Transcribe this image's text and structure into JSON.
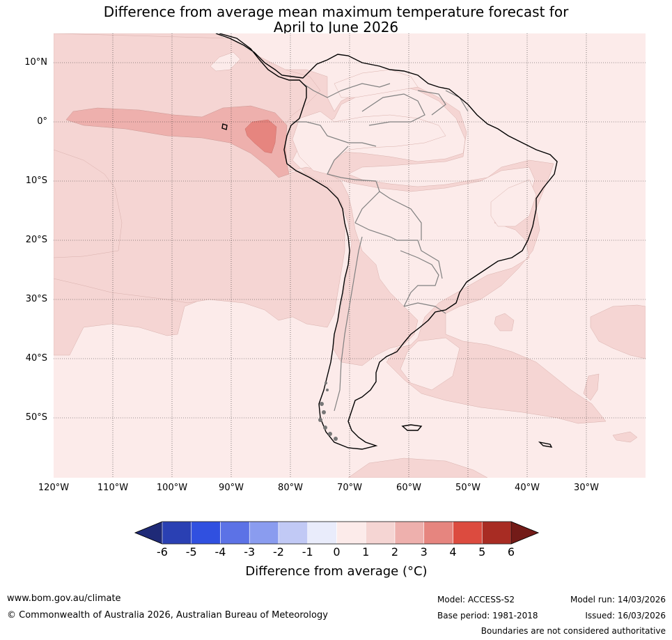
{
  "title": {
    "line1": "Difference from average mean maximum temperature forecast for",
    "line2": "April to June 2026"
  },
  "map": {
    "lat_labels": [
      "10°N",
      "0°",
      "10°S",
      "20°S",
      "30°S",
      "40°S",
      "50°S"
    ],
    "lon_labels": [
      "120°W",
      "110°W",
      "100°W",
      "90°W",
      "80°W",
      "70°W",
      "60°W",
      "50°W",
      "40°W",
      "30°W"
    ],
    "colors": {
      "c_0_1": "#fcebea",
      "c_1_2": "#f5d5d3",
      "c_2_3": "#eeb0ad",
      "c_3_4": "#e6857f",
      "land_border": "#000000",
      "state_border": "#808080",
      "grid": "#333333"
    }
  },
  "colorbar": {
    "ticks": [
      "-6",
      "-5",
      "-4",
      "-3",
      "-2",
      "-1",
      "0",
      "1",
      "2",
      "3",
      "4",
      "5",
      "6"
    ],
    "colors": [
      "#1f2a77",
      "#2a40b3",
      "#3050e0",
      "#5c72e6",
      "#8a9cef",
      "#c1c9f5",
      "#e9ecfb",
      "#fcebea",
      "#f5d5d3",
      "#eeb0ad",
      "#e6857f",
      "#dc4b3f",
      "#a82c23",
      "#731b18"
    ],
    "label": "Difference from average (°C)"
  },
  "footer": {
    "url": "www.bom.gov.au/climate",
    "copyright": "© Commonwealth of Australia 2026, Australian Bureau of Meteorology",
    "model": "Model: ACCESS-S2",
    "base_period": "Base period: 1981-2018",
    "model_run": "Model run: 14/03/2026",
    "issued": "Issued: 16/03/2026",
    "disclaimer": "Boundaries are not considered authoritative"
  }
}
